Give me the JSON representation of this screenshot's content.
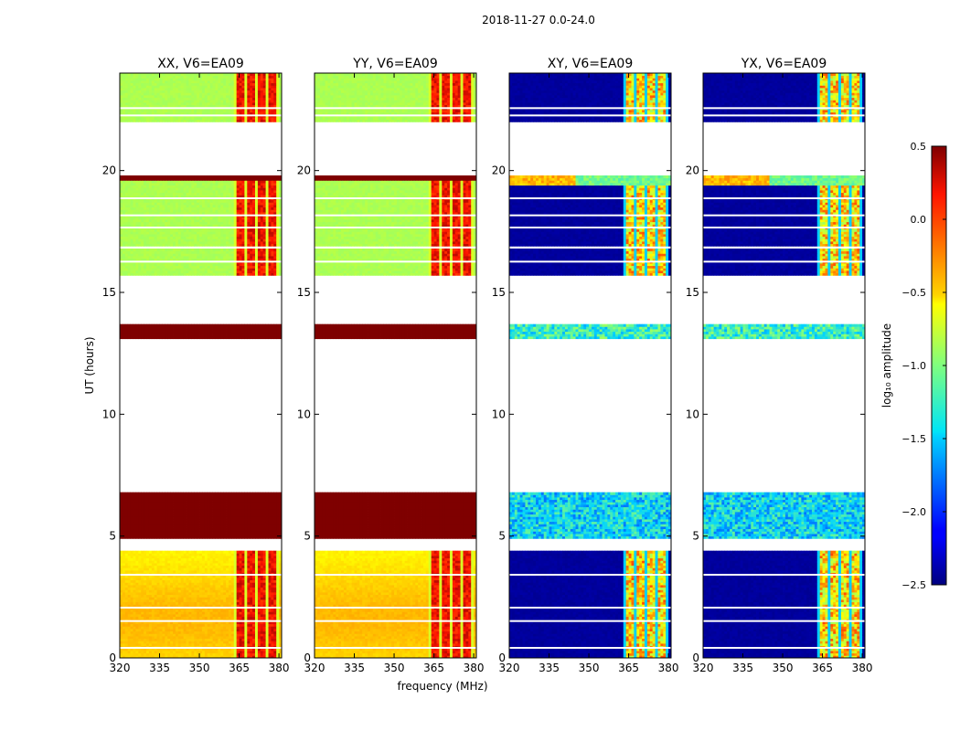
{
  "figure": {
    "title": "2018-11-27 0.0-24.0",
    "shared_xlabel": "frequency (MHz)",
    "shared_ylabel": "UT (hours)"
  },
  "chart_data": {
    "type": "heatmap",
    "title": "2018-11-27 0.0-24.0",
    "xlabel": "frequency (MHz)",
    "ylabel": "UT (hours)",
    "xlim": [
      320,
      381
    ],
    "ylim": [
      0,
      24
    ],
    "xticks": [
      320,
      335,
      350,
      365,
      380
    ],
    "yticks": [
      0,
      5,
      10,
      15,
      20
    ],
    "panels": [
      {
        "title": "XX, V6=EA09",
        "kind": "parallel"
      },
      {
        "title": "YY, V6=EA09",
        "kind": "parallel"
      },
      {
        "title": "XY, V6=EA09",
        "kind": "cross"
      },
      {
        "title": "YX, V6=EA09",
        "kind": "cross"
      }
    ],
    "data_ranges_hours": [
      [
        0,
        4.4
      ],
      [
        4.9,
        6.7
      ],
      [
        13.1,
        13.6
      ],
      [
        15.7,
        16.8
      ],
      [
        16.9,
        19.8
      ],
      [
        22.0,
        24.0
      ]
    ],
    "rfi_band_mhz": [
      363,
      379
    ],
    "colorbar": {
      "label": "log₁₀ amplitude",
      "vmin": -2.5,
      "vmax": 0.5,
      "ticks": [
        0.5,
        0.0,
        -0.5,
        -1.0,
        -1.5,
        -2.0,
        -2.5
      ],
      "tick_labels": [
        "0.5",
        "0.0",
        "−0.5",
        "−1.0",
        "−1.5",
        "−2.0",
        "−2.5"
      ],
      "colormap": "jet"
    }
  }
}
